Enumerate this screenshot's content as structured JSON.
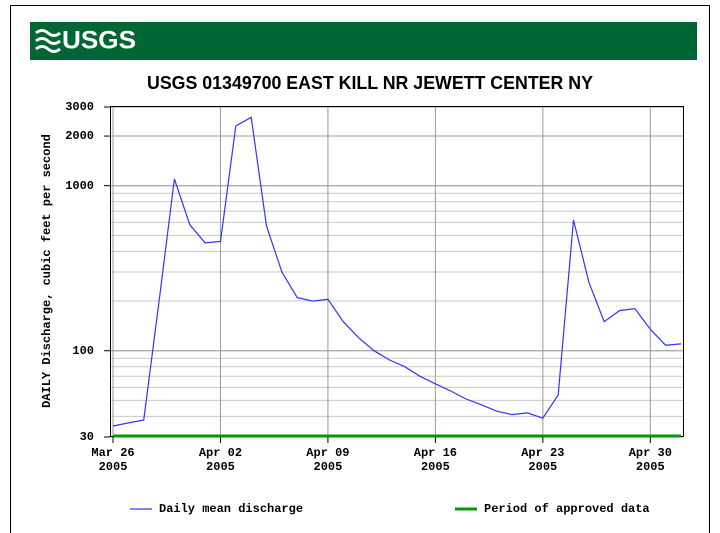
{
  "logo": "USGS",
  "chart_data": {
    "type": "line",
    "title": "USGS 01349700 EAST KILL NR JEWETT CENTER NY",
    "y_label": "DAILY Discharge, cubic feet per second",
    "log_scale": true,
    "grid": true,
    "minor_grid": true,
    "x": [
      "2005-03-26",
      "2005-03-27",
      "2005-03-28",
      "2005-03-29",
      "2005-03-30",
      "2005-03-31",
      "2005-04-01",
      "2005-04-02",
      "2005-04-03",
      "2005-04-04",
      "2005-04-05",
      "2005-04-06",
      "2005-04-07",
      "2005-04-08",
      "2005-04-09",
      "2005-04-10",
      "2005-04-11",
      "2005-04-12",
      "2005-04-13",
      "2005-04-14",
      "2005-04-15",
      "2005-04-16",
      "2005-04-17",
      "2005-04-18",
      "2005-04-19",
      "2005-04-20",
      "2005-04-21",
      "2005-04-22",
      "2005-04-23",
      "2005-04-24",
      "2005-04-25",
      "2005-04-26",
      "2005-04-27",
      "2005-04-28",
      "2005-04-29",
      "2005-04-30",
      "2005-05-01",
      "2005-05-02"
    ],
    "series": [
      {
        "name": "Daily mean discharge",
        "color": "#3333ff",
        "values": [
          35,
          36.5,
          38,
          200,
          1100,
          580,
          450,
          460,
          2300,
          2600,
          570,
          300,
          210,
          200,
          205,
          150,
          120,
          100,
          88,
          80,
          70,
          63,
          57,
          51,
          47,
          43,
          41,
          42,
          39,
          54,
          620,
          260,
          150,
          175,
          180,
          135,
          108,
          110
        ]
      }
    ],
    "periods": [
      {
        "name": "Period of approved data",
        "color": "#009900",
        "start": "2005-03-26",
        "end": "2005-05-02"
      }
    ],
    "xlim": [
      "2005-03-26",
      "2005-05-02"
    ],
    "xticks": [
      {
        "value": "2005-03-26",
        "label": [
          "Mar 26",
          "2005"
        ]
      },
      {
        "value": "2005-04-02",
        "label": [
          "Apr 02",
          "2005"
        ]
      },
      {
        "value": "2005-04-09",
        "label": [
          "Apr 09",
          "2005"
        ]
      },
      {
        "value": "2005-04-16",
        "label": [
          "Apr 16",
          "2005"
        ]
      },
      {
        "value": "2005-04-23",
        "label": [
          "Apr 23",
          "2005"
        ]
      },
      {
        "value": "2005-04-30",
        "label": [
          "Apr 30",
          "2005"
        ]
      }
    ],
    "ylim": [
      30,
      3000
    ],
    "yticks": [
      30,
      100,
      1000,
      2000,
      3000
    ]
  }
}
